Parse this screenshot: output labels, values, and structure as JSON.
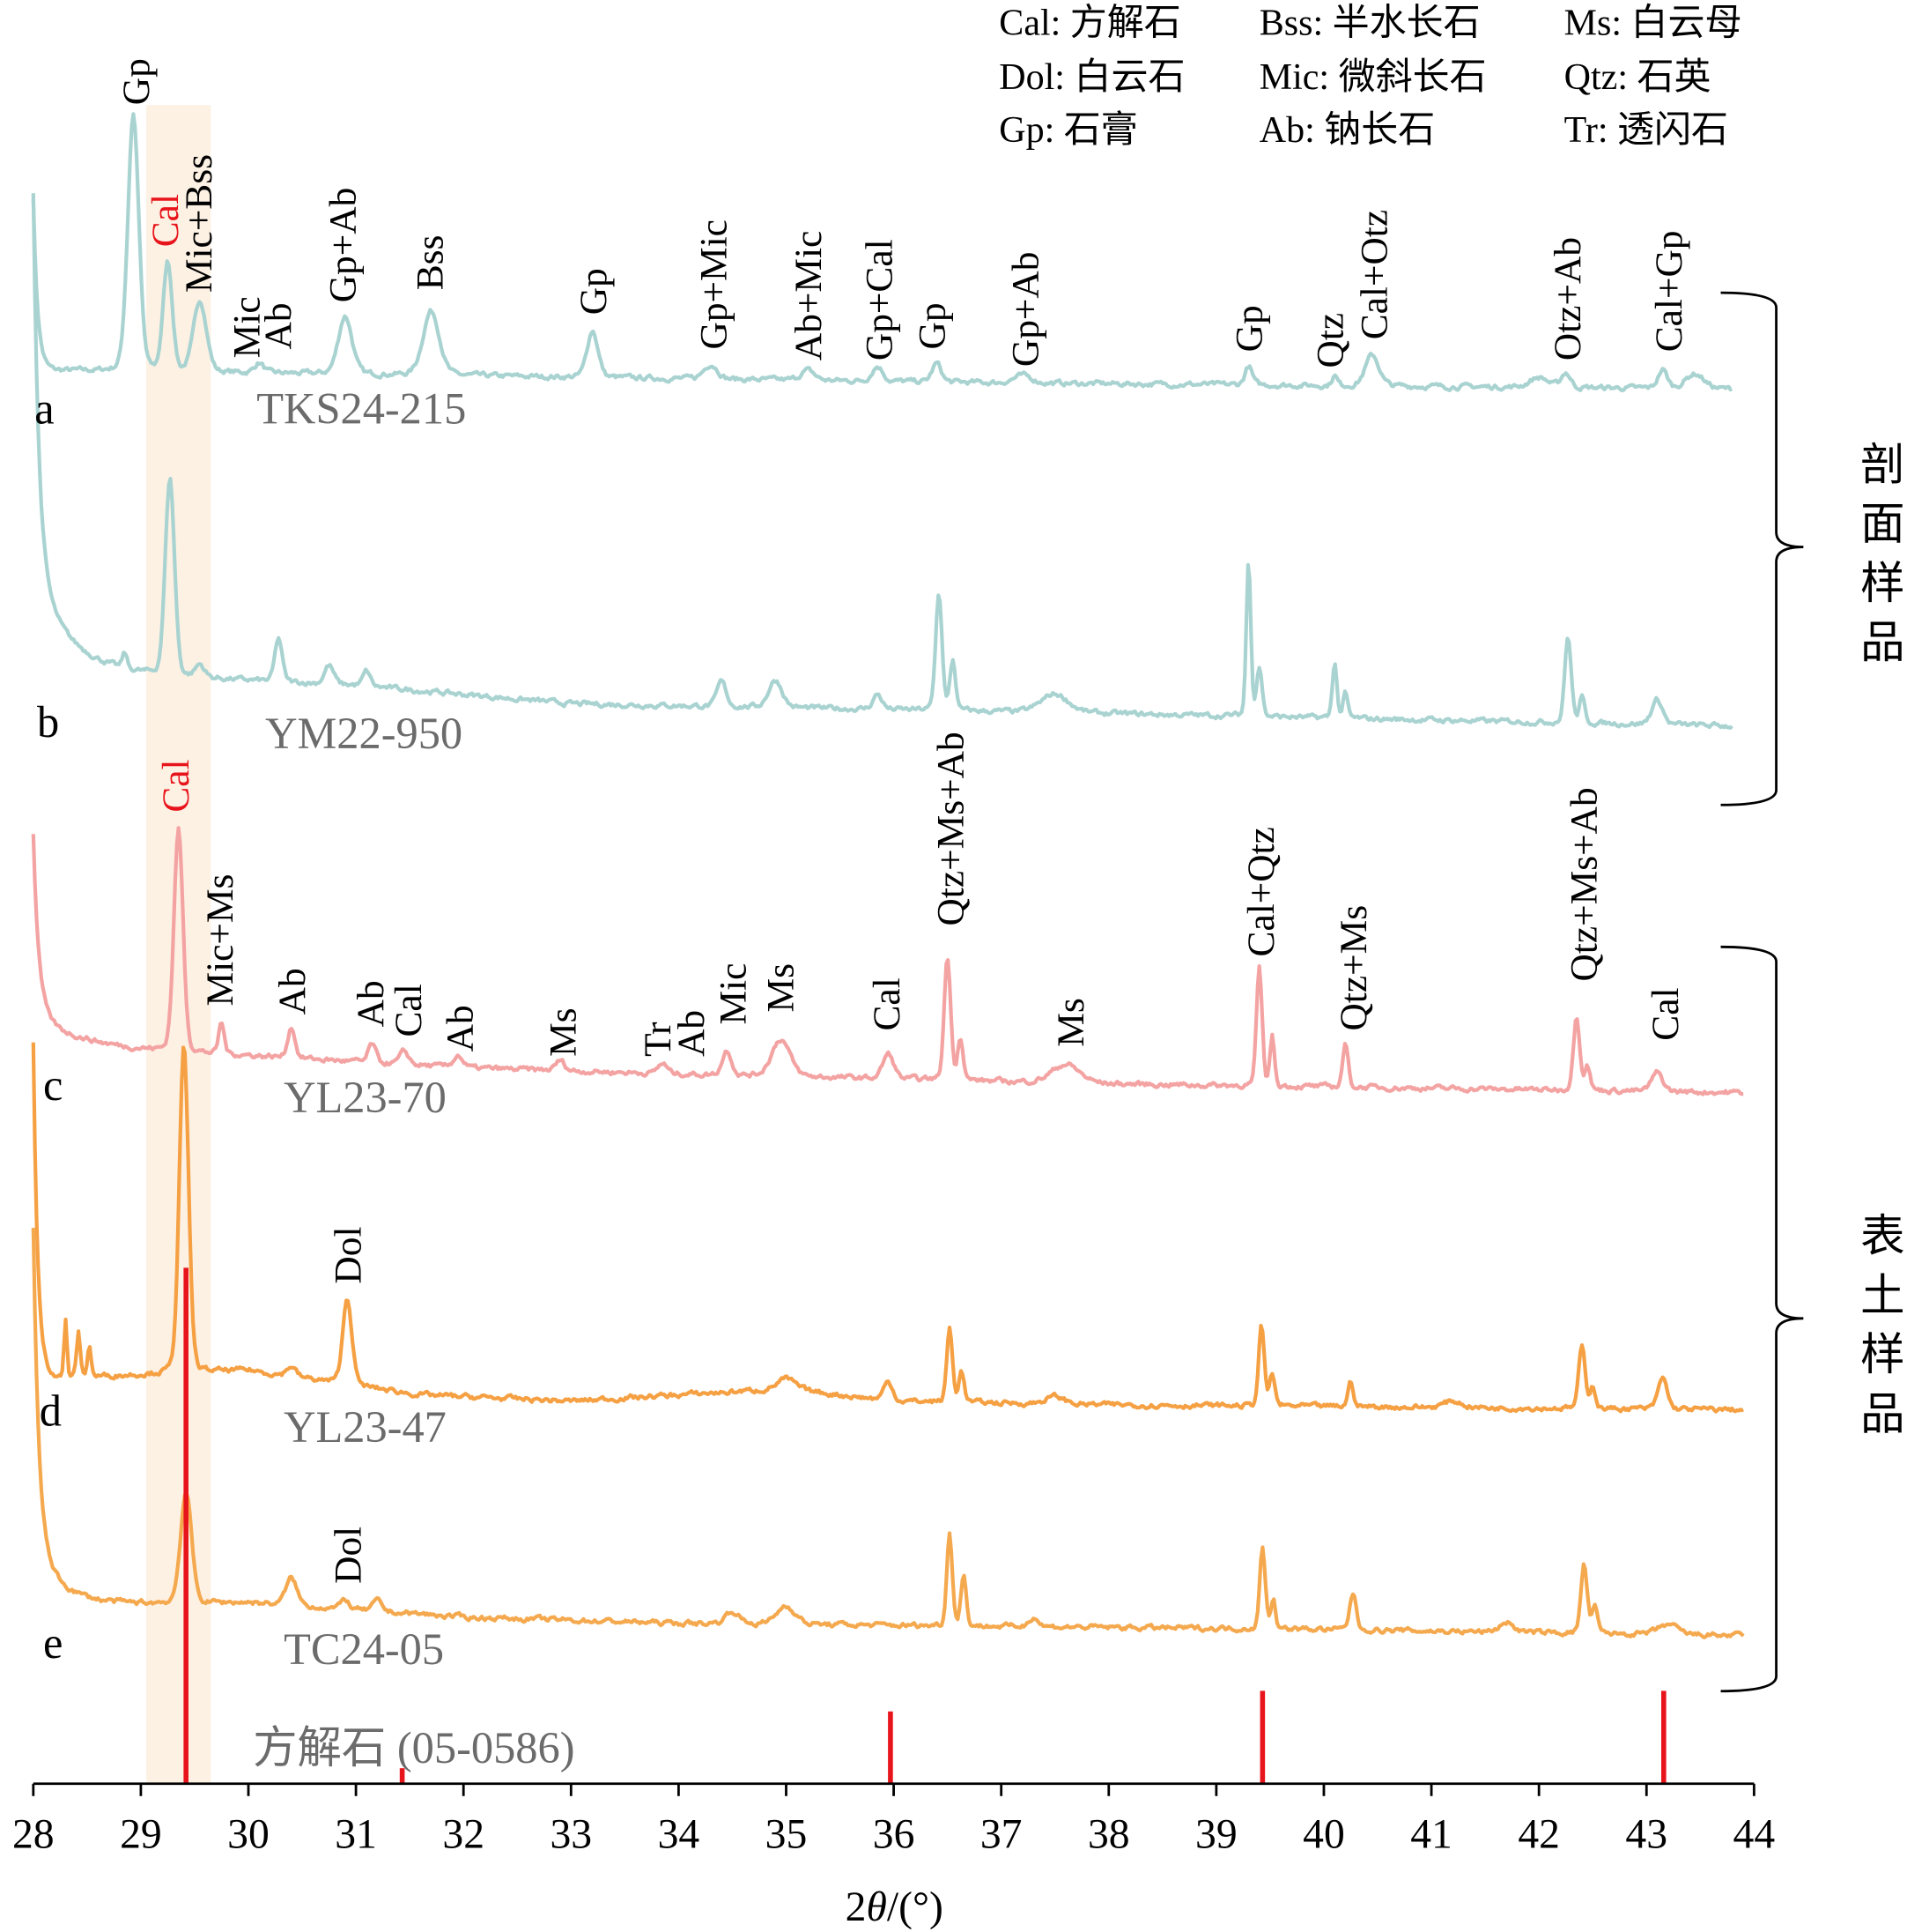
{
  "chart_data": {
    "type": "line",
    "xlabel_prefix": "2",
    "xlabel_symbol": "θ",
    "xlabel_suffix": "/(°)",
    "xlim": [
      28,
      44
    ],
    "xticks": [
      28,
      29,
      30,
      31,
      32,
      33,
      34,
      35,
      36,
      37,
      38,
      39,
      40,
      41,
      42,
      43,
      44
    ],
    "y_axis_shown": false,
    "grid": false,
    "highlight_band": {
      "x": [
        29.05,
        29.65
      ],
      "color": "#fdf1e4"
    },
    "legend": [
      [
        "Cal: 方解石",
        "Bss: 半水长石",
        "Ms: 白云母"
      ],
      [
        "Dol: 白云石",
        "Mic: 微斜长石",
        "Qtz: 石英"
      ],
      [
        "Gp: 石膏",
        "Ab: 钠长石",
        "Tr: 透闪石"
      ]
    ],
    "groups": [
      {
        "label": "剖面样品",
        "samples": [
          "a",
          "b"
        ]
      },
      {
        "label": "表土样品",
        "samples": [
          "c",
          "d",
          "e"
        ]
      }
    ],
    "series": [
      {
        "letter": "a",
        "name": "TKS24-215",
        "color": "#a9d3d1",
        "range": [
          28.0,
          43.8
        ],
        "baseline": [
          [
            28.3,
            30
          ],
          [
            37,
            20
          ],
          [
            43.8,
            15
          ]
        ],
        "rise": [
          [
            140,
            0.04
          ]
        ],
        "peaks": [
          [
            28.93,
            208,
            0.12
          ],
          [
            29.25,
            88,
            0.1
          ],
          [
            29.55,
            58,
            0.14
          ],
          [
            30.1,
            8,
            0.1
          ],
          [
            30.9,
            47,
            0.15
          ],
          [
            31.7,
            52,
            0.18
          ],
          [
            33.2,
            38,
            0.12
          ],
          [
            34.3,
            12,
            0.15
          ],
          [
            35.2,
            8,
            0.15
          ],
          [
            35.85,
            12,
            0.12
          ],
          [
            36.4,
            15,
            0.1
          ],
          [
            37.2,
            6,
            0.2
          ],
          [
            39.3,
            15,
            0.08
          ],
          [
            40.1,
            8,
            0.06
          ],
          [
            40.45,
            25,
            0.15
          ],
          [
            42.0,
            8,
            0.2
          ],
          [
            42.25,
            12,
            0.1
          ],
          [
            43.15,
            15,
            0.1
          ],
          [
            43.45,
            12,
            0.2
          ]
        ],
        "labels": [
          [
            "Gp",
            28.95,
            false
          ],
          [
            "Cal",
            29.22,
            true
          ],
          [
            "Mic+Bss",
            29.53,
            false
          ],
          [
            "Mic",
            29.98,
            false
          ],
          [
            "Ab",
            30.27,
            false
          ],
          [
            "Gp+Ab",
            30.87,
            false
          ],
          [
            "Bss",
            31.68,
            false
          ],
          [
            "Gp",
            33.2,
            false
          ],
          [
            "Gp+Mic",
            34.32,
            false
          ],
          [
            "Ab+Mic",
            35.2,
            false
          ],
          [
            "Gp+Cal",
            35.86,
            false
          ],
          [
            "Gp",
            36.35,
            false
          ],
          [
            "Gp+Ab",
            37.22,
            false
          ],
          [
            "Gp",
            39.3,
            false
          ],
          [
            "Qtz",
            40.05,
            false
          ],
          [
            "Cal+Otz",
            40.46,
            false
          ],
          [
            "Otz+Ab",
            42.26,
            false
          ],
          [
            "Cal+Gp",
            43.2,
            false
          ]
        ]
      },
      {
        "letter": "b",
        "name": "YM22-950",
        "color": "#a9d3d1",
        "range": [
          28.0,
          43.8
        ],
        "baseline": [
          [
            28.5,
            55
          ],
          [
            31,
            45
          ],
          [
            33,
            30
          ],
          [
            38,
            22
          ],
          [
            43.8,
            12
          ]
        ],
        "rise": [
          [
            300,
            0.05
          ],
          [
            90,
            0.3
          ]
        ],
        "peaks": [
          [
            28.85,
            12,
            0.05
          ],
          [
            29.27,
            160,
            0.1
          ],
          [
            29.55,
            10,
            0.1
          ],
          [
            30.28,
            35,
            0.08
          ],
          [
            30.75,
            15,
            0.1
          ],
          [
            31.1,
            12,
            0.08
          ],
          [
            34.4,
            20,
            0.1
          ],
          [
            34.9,
            22,
            0.15
          ],
          [
            35.85,
            12,
            0.1
          ],
          [
            36.42,
            95,
            0.07
          ],
          [
            36.55,
            40,
            0.06
          ],
          [
            37.5,
            15,
            0.3
          ],
          [
            39.3,
            125,
            0.05
          ],
          [
            39.4,
            40,
            0.06
          ],
          [
            40.1,
            45,
            0.05
          ],
          [
            40.2,
            20,
            0.05
          ],
          [
            42.27,
            70,
            0.07
          ],
          [
            42.4,
            20,
            0.06
          ],
          [
            43.1,
            20,
            0.12
          ]
        ],
        "labels": []
      },
      {
        "letter": "c",
        "name": "YL23-70",
        "color": "#f4a3a3",
        "range": [
          28.0,
          43.9
        ],
        "baseline": [
          [
            28.5,
            50
          ],
          [
            30,
            45
          ],
          [
            32,
            35
          ],
          [
            34,
            30
          ],
          [
            38,
            22
          ],
          [
            43.9,
            15
          ]
        ],
        "rise": [
          [
            145,
            0.05
          ],
          [
            30,
            0.4
          ]
        ],
        "peaks": [
          [
            29.35,
            180,
            0.1
          ],
          [
            29.75,
            25,
            0.06
          ],
          [
            30.4,
            25,
            0.08
          ],
          [
            31.15,
            15,
            0.08
          ],
          [
            31.45,
            10,
            0.1
          ],
          [
            31.95,
            10,
            0.1
          ],
          [
            32.9,
            8,
            0.1
          ],
          [
            33.85,
            8,
            0.1
          ],
          [
            34.45,
            20,
            0.1
          ],
          [
            34.95,
            30,
            0.2
          ],
          [
            35.95,
            20,
            0.12
          ],
          [
            36.5,
            100,
            0.07
          ],
          [
            36.62,
            35,
            0.06
          ],
          [
            37.6,
            15,
            0.3
          ],
          [
            39.4,
            95,
            0.06
          ],
          [
            39.52,
            40,
            0.05
          ],
          [
            40.2,
            35,
            0.06
          ],
          [
            42.35,
            60,
            0.07
          ],
          [
            42.45,
            20,
            0.06
          ],
          [
            43.1,
            15,
            0.12
          ]
        ],
        "labels": [
          [
            "Cal",
            29.32,
            true
          ],
          [
            "Mic+Ms",
            29.73,
            false
          ],
          [
            "Ab",
            30.4,
            false
          ],
          [
            "Ab",
            31.13,
            false
          ],
          [
            "Cal",
            31.48,
            false
          ],
          [
            "Ab",
            31.96,
            false
          ],
          [
            "Ms",
            32.92,
            false
          ],
          [
            "Tr",
            33.8,
            false
          ],
          [
            "Ab",
            34.11,
            false
          ],
          [
            "Mic",
            34.5,
            false
          ],
          [
            "Ms",
            34.94,
            false
          ],
          [
            "Cal",
            35.93,
            false
          ],
          [
            "Qtz+Ms+Ab",
            36.52,
            false
          ],
          [
            "Ms",
            37.64,
            false
          ],
          [
            "Cal+Qtz",
            39.41,
            false
          ],
          [
            "Qtz+Ms",
            40.27,
            false
          ],
          [
            "Qtz+Ms+Ab",
            42.41,
            false
          ],
          [
            "Cal",
            43.17,
            false
          ]
        ]
      },
      {
        "letter": "d",
        "name": "YL23-47",
        "color": "#f5a043",
        "range": [
          28.0,
          43.9
        ],
        "baseline": [
          [
            28.6,
            35
          ],
          [
            30,
            40
          ],
          [
            31.6,
            20
          ],
          [
            33,
            15
          ],
          [
            35,
            25
          ],
          [
            36,
            15
          ],
          [
            38,
            12
          ],
          [
            43.9,
            8
          ]
        ],
        "rise": [
          [
            270,
            0.04
          ]
        ],
        "peaks": [
          [
            28.3,
            45,
            0.03
          ],
          [
            28.42,
            35,
            0.04
          ],
          [
            28.52,
            25,
            0.04
          ],
          [
            29.4,
            265,
            0.1
          ],
          [
            30.4,
            8,
            0.1
          ],
          [
            30.92,
            70,
            0.1
          ],
          [
            35.0,
            8,
            0.2
          ],
          [
            35.95,
            15,
            0.1
          ],
          [
            36.52,
            60,
            0.06
          ],
          [
            36.63,
            25,
            0.06
          ],
          [
            37.5,
            6,
            0.2
          ],
          [
            39.42,
            65,
            0.06
          ],
          [
            39.52,
            25,
            0.06
          ],
          [
            40.25,
            20,
            0.06
          ],
          [
            41.2,
            5,
            0.2
          ],
          [
            42.4,
            50,
            0.07
          ],
          [
            42.5,
            18,
            0.06
          ],
          [
            43.15,
            25,
            0.1
          ]
        ],
        "labels": [
          [
            "Dol",
            30.92,
            false
          ]
        ]
      },
      {
        "letter": "e",
        "name": "TC24-05",
        "color": "#f5a94f",
        "range": [
          28.0,
          43.9
        ],
        "baseline": [
          [
            28.5,
            35
          ],
          [
            30,
            37
          ],
          [
            32,
            25
          ],
          [
            34,
            20
          ],
          [
            40,
            15
          ],
          [
            43.9,
            10
          ]
        ],
        "rise": [
          [
            255,
            0.05
          ],
          [
            50,
            0.25
          ]
        ],
        "peaks": [
          [
            29.42,
            90,
            0.12
          ],
          [
            30.4,
            22,
            0.12
          ],
          [
            30.9,
            8,
            0.08
          ],
          [
            31.2,
            8,
            0.1
          ],
          [
            34.5,
            10,
            0.15
          ],
          [
            35.0,
            15,
            0.2
          ],
          [
            36.52,
            75,
            0.06
          ],
          [
            36.65,
            40,
            0.06
          ],
          [
            37.3,
            8,
            0.1
          ],
          [
            39.43,
            65,
            0.06
          ],
          [
            39.53,
            25,
            0.05
          ],
          [
            40.27,
            30,
            0.07
          ],
          [
            41.7,
            8,
            0.15
          ],
          [
            42.42,
            55,
            0.07
          ],
          [
            42.52,
            20,
            0.06
          ],
          [
            43.2,
            8,
            0.2
          ]
        ],
        "labels": [
          [
            "Dol",
            30.92,
            false
          ]
        ]
      }
    ],
    "reference": {
      "name": "方解石 (05-0586)",
      "color": "#e8141b",
      "lines": [
        [
          29.42,
          100
        ],
        [
          31.43,
          3
        ],
        [
          35.97,
          14
        ],
        [
          39.43,
          18
        ],
        [
          43.16,
          18
        ]
      ]
    }
  }
}
